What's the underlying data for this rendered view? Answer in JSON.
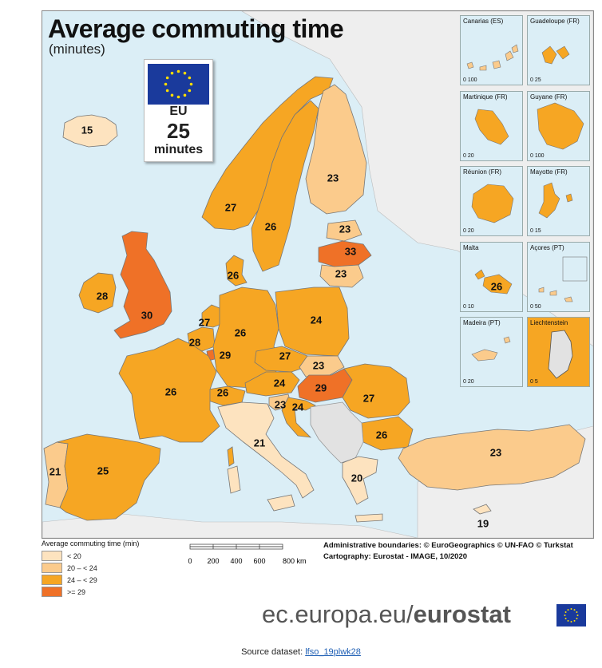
{
  "title": "Average commuting time",
  "subtitle": "(minutes)",
  "eu_box": {
    "label": "EU",
    "value": "25",
    "unit": "minutes"
  },
  "colors": {
    "lt20": "#fde3bf",
    "c20_24": "#fbcb8c",
    "c24_29": "#f6a623",
    "ge29": "#ef7127",
    "nodata": "#e2e2e2",
    "sea": "#dbeef6",
    "eu_blue": "#1a3a9c",
    "eu_star": "#ffdd00"
  },
  "regions": [
    {
      "name": "Iceland",
      "value": "15"
    },
    {
      "name": "Norway",
      "value": "27"
    },
    {
      "name": "Sweden",
      "value": "26"
    },
    {
      "name": "Finland",
      "value": "23"
    },
    {
      "name": "Estonia",
      "value": "23"
    },
    {
      "name": "Latvia",
      "value": "33"
    },
    {
      "name": "Lithuania",
      "value": "23"
    },
    {
      "name": "Denmark",
      "value": "26"
    },
    {
      "name": "Ireland",
      "value": "28"
    },
    {
      "name": "United Kingdom",
      "value": "30"
    },
    {
      "name": "Netherlands",
      "value": "27"
    },
    {
      "name": "Belgium",
      "value": "28"
    },
    {
      "name": "Luxembourg",
      "value": "29"
    },
    {
      "name": "Germany",
      "value": "26"
    },
    {
      "name": "Poland",
      "value": "24"
    },
    {
      "name": "Czechia",
      "value": "27"
    },
    {
      "name": "Slovakia",
      "value": "23"
    },
    {
      "name": "Austria",
      "value": "24"
    },
    {
      "name": "Hungary",
      "value": "29"
    },
    {
      "name": "Romania",
      "value": "27"
    },
    {
      "name": "Switzerland",
      "value": "26"
    },
    {
      "name": "Slovenia",
      "value": "23"
    },
    {
      "name": "Croatia",
      "value": "24"
    },
    {
      "name": "France",
      "value": "26"
    },
    {
      "name": "Italy",
      "value": "21"
    },
    {
      "name": "Bulgaria",
      "value": "26"
    },
    {
      "name": "Portugal",
      "value": "21"
    },
    {
      "name": "Spain",
      "value": "25"
    },
    {
      "name": "Greece",
      "value": "20"
    },
    {
      "name": "Turkey",
      "value": "23"
    },
    {
      "name": "Cyprus",
      "value": "19"
    }
  ],
  "insets": [
    {
      "name": "Canarias (ES)",
      "scale": "0  100"
    },
    {
      "name": "Guadeloupe (FR)",
      "scale": "0    25"
    },
    {
      "name": "Martinique (FR)",
      "scale": "0      20"
    },
    {
      "name": "Guyane (FR)",
      "scale": "0    100"
    },
    {
      "name": "Réunion (FR)",
      "scale": "0     20"
    },
    {
      "name": "Mayotte (FR)",
      "scale": "0      15"
    },
    {
      "name": "Malta",
      "scale": "0    10",
      "value": "26"
    },
    {
      "name": "Açores (PT)",
      "scale": "0    50"
    },
    {
      "name": "Madeira (PT)",
      "scale": "0    20"
    },
    {
      "name": "Liechtenstein",
      "scale": "0     5"
    }
  ],
  "legend": {
    "title": "Average commuting time (min)",
    "items": [
      "< 20",
      "20 – < 24",
      "24 – < 29",
      ">= 29"
    ]
  },
  "scale_bar": {
    "ticks": [
      "0",
      "200",
      "400",
      "600",
      "800 km"
    ]
  },
  "credits": {
    "line1": "Administrative boundaries: © EuroGeographics © UN-FAO © Turkstat",
    "line2": "Cartography: Eurostat - IMAGE, 10/2020"
  },
  "branding": {
    "prefix": "ec.europa.eu/",
    "strong": "eurostat"
  },
  "source": {
    "label": "Source dataset:",
    "link": "lfso_19plwk28"
  }
}
